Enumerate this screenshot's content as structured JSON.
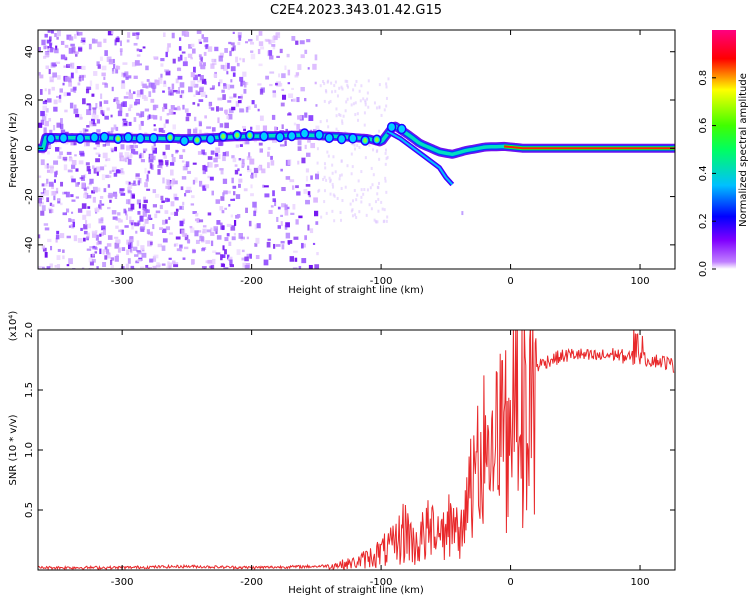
{
  "title": "C2E4.2023.343.01.42.G15",
  "colors": {
    "snr_line": "#e8282a",
    "frame": "#000000",
    "grid_bg": "#ffffff"
  },
  "chart_data": [
    {
      "type": "heatmap",
      "name": "spectrogram",
      "xlabel": "Height of straight line (km)",
      "ylabel": "Frequency (Hz)",
      "xlim": [
        -365,
        127
      ],
      "ylim": [
        -50,
        49
      ],
      "x_ticks": [
        -300,
        -200,
        -100,
        0,
        100
      ],
      "y_ticks": [
        -40,
        -20,
        0,
        20,
        40
      ],
      "colorbar": {
        "label": "Normalized spectral amplitude",
        "range": [
          0.0,
          1.0
        ],
        "ticks": [
          "0.0",
          "0.2",
          "0.4",
          "0.6",
          "0.8"
        ],
        "colors": [
          "#ffffff",
          "#8000ff",
          "#0000ff",
          "#00c0ff",
          "#00ff00",
          "#ffff00",
          "#ff0000",
          "#ff0080"
        ]
      },
      "ridge": [
        {
          "x": -360,
          "f": 4.5
        },
        {
          "x": -300,
          "f": 4.2
        },
        {
          "x": -250,
          "f": 4.0
        },
        {
          "x": -200,
          "f": 5.0
        },
        {
          "x": -160,
          "f": 5.5
        },
        {
          "x": -130,
          "f": 4.8
        },
        {
          "x": -110,
          "f": 4.0
        },
        {
          "x": -100,
          "f": 2.5
        },
        {
          "x": -90,
          "f": 9.5
        },
        {
          "x": -80,
          "f": 6.0
        },
        {
          "x": -70,
          "f": 2.0
        },
        {
          "x": -55,
          "f": -1.5
        },
        {
          "x": -45,
          "f": -2.5
        },
        {
          "x": -35,
          "f": -1.0
        },
        {
          "x": -20,
          "f": 0.5
        },
        {
          "x": -5,
          "f": 0.8
        },
        {
          "x": 10,
          "f": 0.0
        },
        {
          "x": 127,
          "f": 0.0
        }
      ],
      "noise_extent_x": [
        -365,
        -150
      ]
    },
    {
      "type": "line",
      "name": "snr",
      "xlabel": "Height of straight line (km)",
      "ylabel": "SNR (10 * v/v)",
      "y_multiplier": "(x10⁴)",
      "xlim": [
        -365,
        127
      ],
      "ylim": [
        0,
        2.0
      ],
      "x_ticks": [
        -300,
        -200,
        -100,
        0,
        100
      ],
      "y_ticks": [
        0.5,
        1.0,
        1.5,
        2.0
      ],
      "series": [
        {
          "x": [
            -365,
            -300,
            -250,
            -200,
            -150,
            -135,
            -120,
            -110,
            -100,
            -90,
            -85,
            -80,
            -75,
            -70,
            -65,
            -60,
            -55,
            -50,
            -45,
            -40,
            -35,
            -30,
            -25,
            -20,
            -15,
            -10,
            -5,
            0,
            5,
            10,
            15,
            20,
            30,
            40,
            50,
            60,
            70,
            80,
            90,
            100,
            110,
            120,
            127
          ],
          "y": [
            0.02,
            0.02,
            0.03,
            0.02,
            0.03,
            0.04,
            0.06,
            0.1,
            0.15,
            0.2,
            0.28,
            0.35,
            0.2,
            0.25,
            0.3,
            0.35,
            0.35,
            0.4,
            0.45,
            0.3,
            0.5,
            0.75,
            0.95,
            1.1,
            1.0,
            1.15,
            1.3,
            1.4,
            1.45,
            1.5,
            1.6,
            1.7,
            1.75,
            1.78,
            1.8,
            1.78,
            1.78,
            1.8,
            1.77,
            1.76,
            1.75,
            1.73,
            1.7
          ]
        }
      ]
    }
  ]
}
